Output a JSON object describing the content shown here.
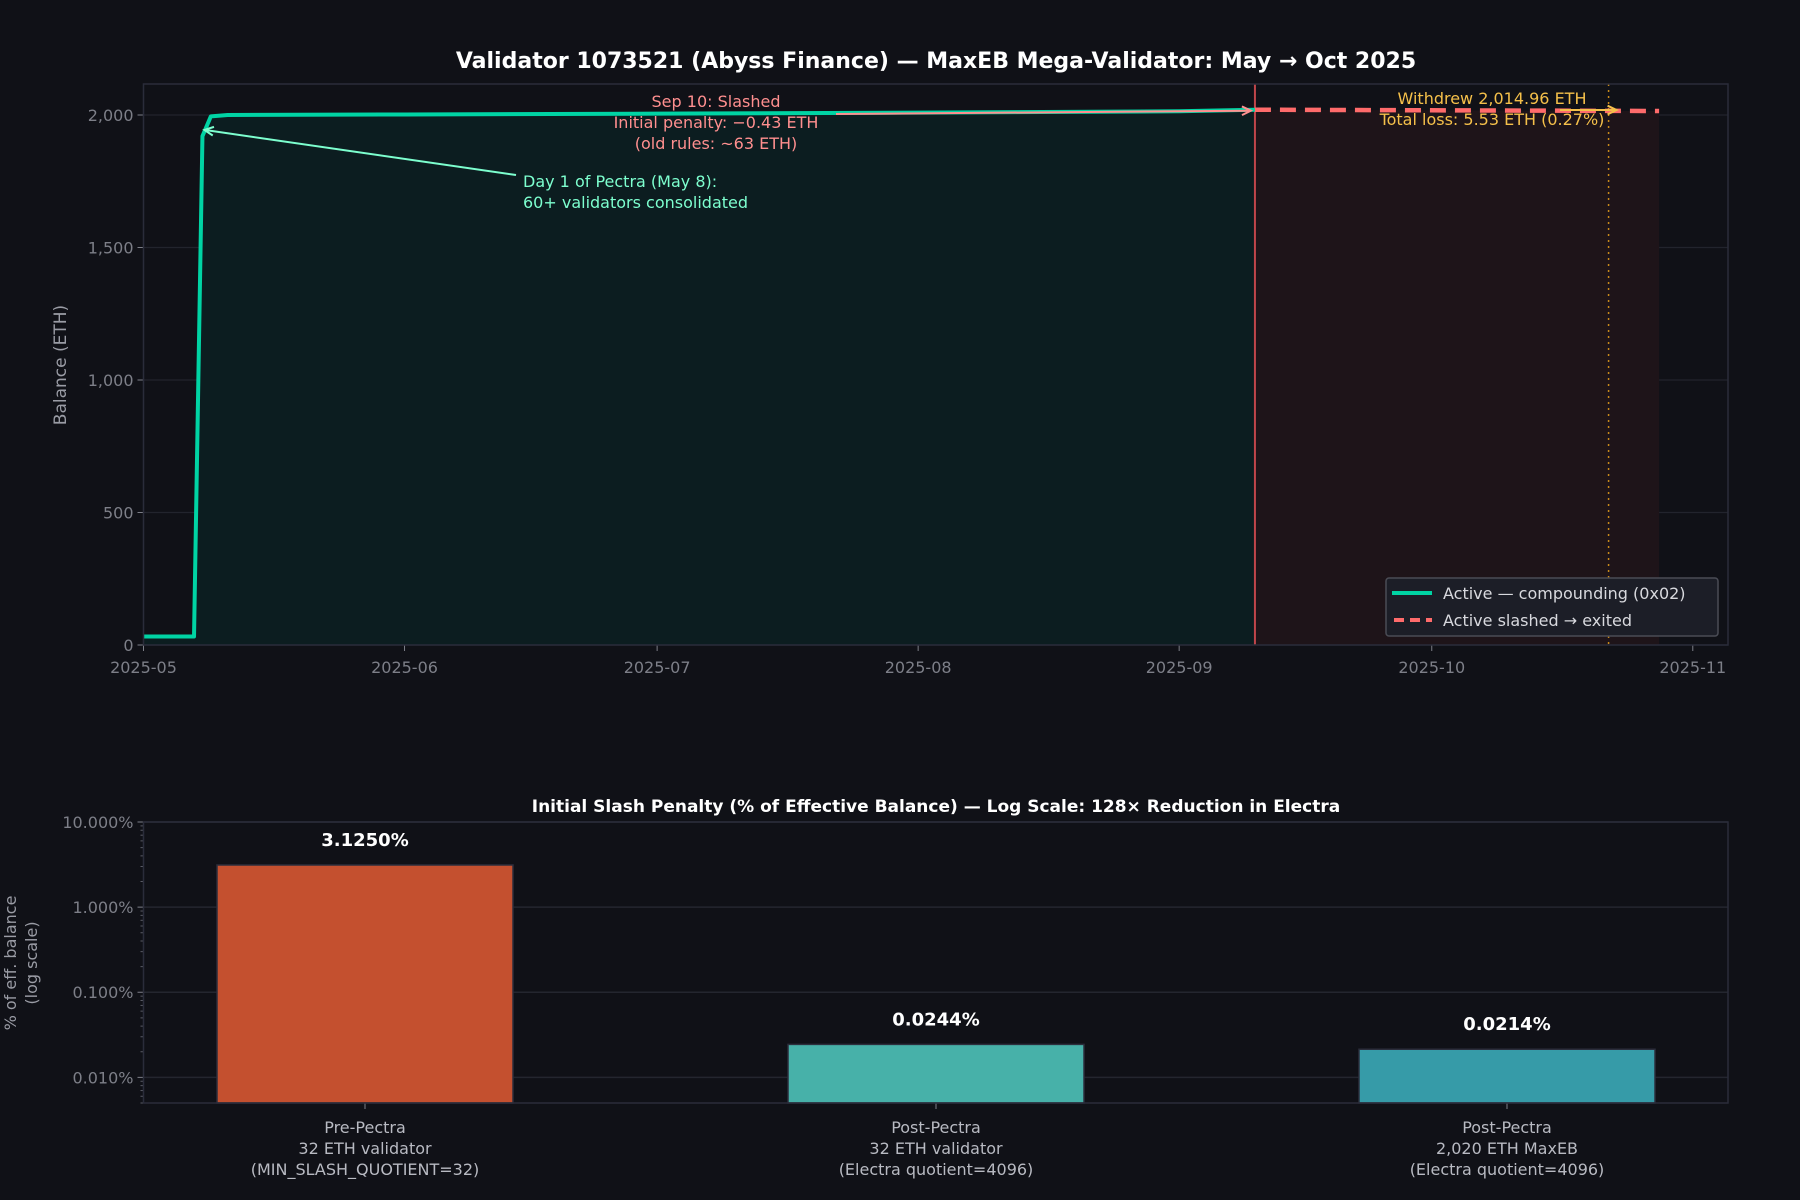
{
  "colors": {
    "background": "#101117",
    "active": "#00d4a4",
    "slashed": "#ff6b6b",
    "withdraw": "#f5c04a",
    "annotation_red": "#ff8f8f",
    "annotation_green": "#7dffcf"
  },
  "chart_data": [
    {
      "type": "line",
      "title": "Validator 1073521 (Abyss Finance) — MaxEB Mega-Validator: May → Oct 2025",
      "xlabel": "",
      "ylabel": "Balance (ETH)",
      "xlim": [
        "2025-05-01",
        "2025-11-05"
      ],
      "ylim": [
        0,
        2120
      ],
      "grid": true,
      "x_ticks": [
        "2025-05",
        "2025-06",
        "2025-07",
        "2025-08",
        "2025-09",
        "2025-10",
        "2025-11"
      ],
      "y_ticks": [
        0,
        500,
        1000,
        1500,
        2000
      ],
      "y_tick_labels": [
        "0",
        "500",
        "1,000",
        "1,500",
        "2,000"
      ],
      "legend_position": "bottom-right",
      "series": [
        {
          "name": "Active — compounding (0x02)",
          "style": "solid",
          "color": "#00d4a4",
          "x": [
            "2025-05-01",
            "2025-05-07",
            "2025-05-08",
            "2025-05-09",
            "2025-05-11",
            "2025-06-01",
            "2025-07-01",
            "2025-08-01",
            "2025-09-01",
            "2025-09-10"
          ],
          "y": [
            32,
            32,
            1920,
            1995,
            2000,
            2002,
            2005,
            2009,
            2014,
            2020
          ]
        },
        {
          "name": "Active slashed → exited",
          "style": "dashed",
          "color": "#ff6b6b",
          "x": [
            "2025-09-10",
            "2025-10-28"
          ],
          "y": [
            2020,
            2015
          ]
        }
      ],
      "markers": {
        "slashed_date": "2025-09-10",
        "withdraw_date": "2025-10-22"
      },
      "annotations": [
        {
          "id": "pectra",
          "lines": [
            "Day 1 of Pectra (May 8):",
            "60+ validators consolidated"
          ],
          "target": {
            "x": "2025-05-08",
            "y": 1940
          }
        },
        {
          "id": "slash",
          "lines": [
            "Sep 10: Slashed",
            "Initial penalty: −0.43 ETH",
            "(old rules: ~63 ETH)"
          ],
          "target": {
            "x": "2025-09-10",
            "y": 2020
          }
        },
        {
          "id": "withdraw",
          "lines": [
            "Withdrew 2,014.96 ETH",
            "Total loss: 5.53 ETH (0.27%)"
          ],
          "target": {
            "x": "2025-10-22",
            "y": 2015
          }
        }
      ]
    },
    {
      "type": "bar",
      "title": "Initial Slash Penalty (% of Effective Balance) — Log Scale: 128× Reduction in Electra",
      "ylabel": "% of eff. balance\n(log scale)",
      "ylabel_lines": [
        "% of eff. balance",
        "(log scale)"
      ],
      "yscale": "log",
      "ylim": [
        0.005,
        10
      ],
      "y_tick_labels": [
        "10.000%",
        "1.000%",
        "0.100%",
        "0.010%"
      ],
      "y_ticks": [
        10,
        1,
        0.1,
        0.01
      ],
      "grid": true,
      "categories": [
        [
          "Pre-Pectra",
          "32 ETH validator",
          "(MIN_SLASH_QUOTIENT=32)"
        ],
        [
          "Post-Pectra",
          "32 ETH validator",
          "(Electra quotient=4096)"
        ],
        [
          "Post-Pectra",
          "2,020 ETH MaxEB",
          "(Electra quotient=4096)"
        ]
      ],
      "values": [
        3.125,
        0.0244,
        0.0214
      ],
      "value_labels": [
        "3.1250%",
        "0.0244%",
        "0.0214%"
      ],
      "bar_colors": [
        "#c4502f",
        "#47b1a9",
        "#369ba8"
      ]
    }
  ]
}
